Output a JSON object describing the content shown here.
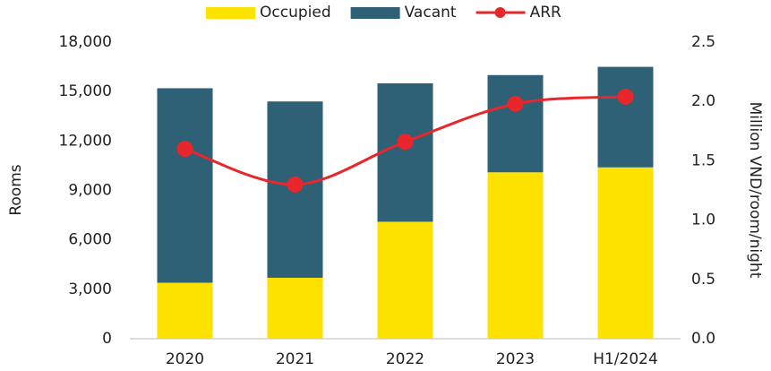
{
  "chart_data": {
    "type": "bar-line",
    "categories": [
      "2020",
      "2021",
      "2022",
      "2023",
      "H1/2024"
    ],
    "series": [
      {
        "name": "Occupied",
        "type": "bar",
        "color": "#fde200",
        "values": [
          3400,
          3700,
          7100,
          10100,
          10400
        ]
      },
      {
        "name": "Vacant",
        "type": "bar",
        "color": "#2e6175",
        "values": [
          11800,
          10700,
          8400,
          5900,
          6100
        ]
      },
      {
        "name": "ARR",
        "type": "line",
        "axis": "y2",
        "color": "#e8262b",
        "values": [
          1.6,
          1.3,
          1.66,
          1.98,
          2.04
        ]
      }
    ],
    "ylabel": "Rooms",
    "y2label": "Million VND/room/night",
    "ylim": [
      0,
      18000
    ],
    "yticks": [
      0,
      {
        "value": 3000,
        "label": "3,000"
      },
      {
        "value": 6000,
        "label": "6,000"
      },
      {
        "value": 9000,
        "label": "9,000"
      },
      {
        "value": 12000,
        "label": "12,000"
      },
      {
        "value": 15000,
        "label": "15,000"
      },
      {
        "value": 18000,
        "label": "18,000"
      }
    ],
    "y2lim": [
      0,
      2.5
    ],
    "y2ticks": [
      {
        "value": 0,
        "label": "0.0"
      },
      0.5,
      {
        "value": 1,
        "label": "1.0"
      },
      1.5,
      {
        "value": 2,
        "label": "2.0"
      },
      2.5
    ],
    "stacked": true,
    "legend": "top"
  }
}
